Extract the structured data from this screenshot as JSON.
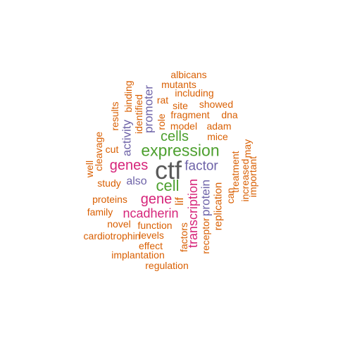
{
  "palette": {
    "orange": "#d95f02",
    "green": "#4da02f",
    "purple": "#6e63a8",
    "magenta": "#d6257a",
    "gray": "#595959"
  },
  "words": [
    {
      "text": "ctf",
      "color": "gray"
    },
    {
      "text": "expression",
      "color": "green"
    },
    {
      "text": "cell",
      "color": "green"
    },
    {
      "text": "cells",
      "color": "green"
    },
    {
      "text": "gene",
      "color": "magenta"
    },
    {
      "text": "genes",
      "color": "magenta"
    },
    {
      "text": "factor",
      "color": "purple"
    },
    {
      "text": "ncadherin",
      "color": "magenta"
    },
    {
      "text": "transcription",
      "color": "magenta"
    },
    {
      "text": "promoter",
      "color": "purple"
    },
    {
      "text": "protein",
      "color": "purple"
    },
    {
      "text": "activity",
      "color": "purple"
    },
    {
      "text": "also",
      "color": "purple"
    },
    {
      "text": "lif",
      "color": "orange"
    },
    {
      "text": "replication",
      "color": "orange"
    },
    {
      "text": "fragment",
      "color": "orange"
    },
    {
      "text": "model",
      "color": "orange"
    },
    {
      "text": "adam",
      "color": "orange"
    },
    {
      "text": "mice",
      "color": "orange"
    },
    {
      "text": "dna",
      "color": "orange"
    },
    {
      "text": "showed",
      "color": "orange"
    },
    {
      "text": "site",
      "color": "orange"
    },
    {
      "text": "rat",
      "color": "orange"
    },
    {
      "text": "including",
      "color": "orange"
    },
    {
      "text": "mutants",
      "color": "orange"
    },
    {
      "text": "albicans",
      "color": "orange"
    },
    {
      "text": "role",
      "color": "orange"
    },
    {
      "text": "identified",
      "color": "orange"
    },
    {
      "text": "binding",
      "color": "orange"
    },
    {
      "text": "results",
      "color": "orange"
    },
    {
      "text": "cut",
      "color": "orange"
    },
    {
      "text": "cleavage",
      "color": "orange"
    },
    {
      "text": "well",
      "color": "orange"
    },
    {
      "text": "study",
      "color": "orange"
    },
    {
      "text": "proteins",
      "color": "orange"
    },
    {
      "text": "family",
      "color": "orange"
    },
    {
      "text": "novel",
      "color": "orange"
    },
    {
      "text": "function",
      "color": "orange"
    },
    {
      "text": "cardiotrophin",
      "color": "orange"
    },
    {
      "text": "levels",
      "color": "orange"
    },
    {
      "text": "effect",
      "color": "orange"
    },
    {
      "text": "implantation",
      "color": "orange"
    },
    {
      "text": "regulation",
      "color": "orange"
    },
    {
      "text": "factors",
      "color": "orange"
    },
    {
      "text": "receptor",
      "color": "orange"
    },
    {
      "text": "treatment",
      "color": "orange"
    },
    {
      "text": "can",
      "color": "orange"
    },
    {
      "text": "increased",
      "color": "orange"
    },
    {
      "text": "may",
      "color": "orange"
    },
    {
      "text": "important",
      "color": "orange"
    }
  ]
}
